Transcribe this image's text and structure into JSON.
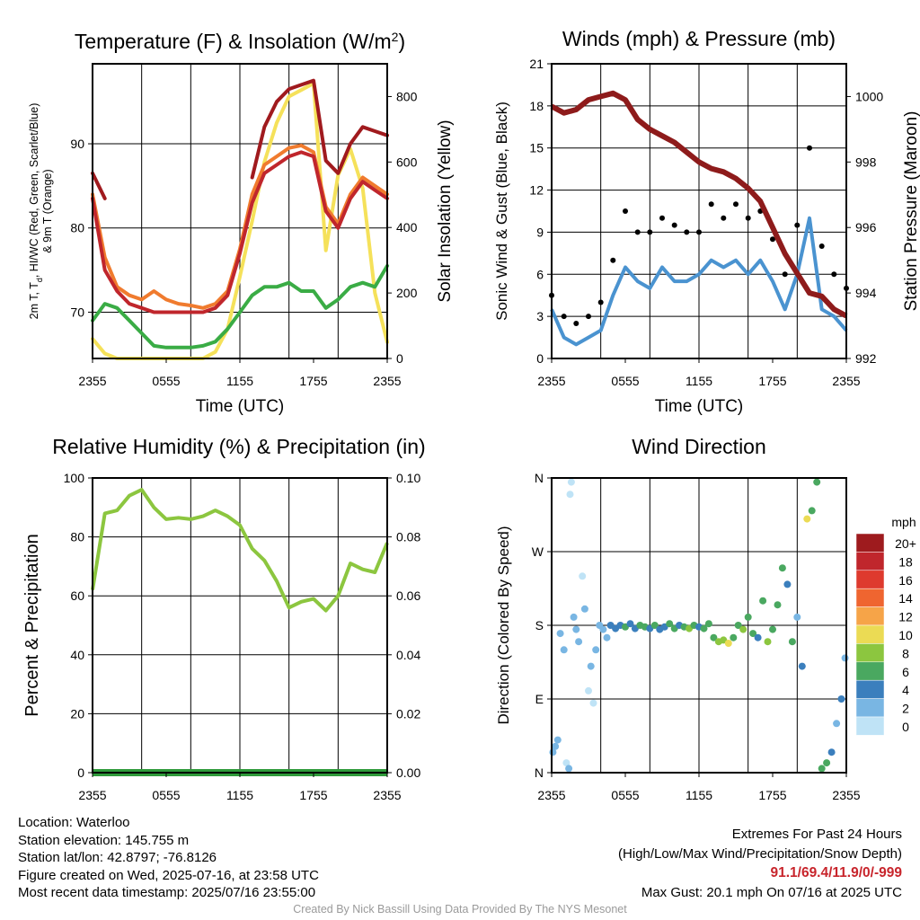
{
  "colors": {
    "temperature": "#c0262c",
    "dewpoint": "#3aac45",
    "heat_index": "#f07b2e",
    "temp_9m": "#a01a1e",
    "insolation": "#f5e15a",
    "wind": "#4a93d0",
    "gust": "#000000",
    "pressure": "#8e1b1b",
    "humidity": "#8cc63f",
    "precipitation": "#2e9a3a"
  },
  "time_ticks": [
    "2355",
    "0555",
    "1155",
    "1755",
    "2355"
  ],
  "charts": {
    "temperature": {
      "title": "Temperature (F) & Insolation (W/m",
      "title_superscript": "2",
      "title_close": ")",
      "ylabel_line1": "2m T, T",
      "ylabel_sub": "d",
      "ylabel_line1_rest": ", HI/WC (Red, Green, Scarlet/Blue)",
      "ylabel_line2": "& 9m T (Orange)",
      "y2label": "Solar Insolation (Yellow)",
      "xlabel": "Time (UTC)",
      "yticks": [
        "70",
        "80",
        "90"
      ],
      "y2ticks": [
        "0",
        "200",
        "400",
        "600",
        "800"
      ]
    },
    "winds": {
      "title": "Winds (mph) & Pressure (mb)",
      "ylabel": "Sonic Wind & Gust (Blue, Black)",
      "y2label": "Station Pressure (Maroon)",
      "xlabel": "Time (UTC)",
      "yticks": [
        "0",
        "3",
        "6",
        "9",
        "12",
        "15",
        "18",
        "21"
      ],
      "y2ticks": [
        "992",
        "994",
        "996",
        "998",
        "1000"
      ]
    },
    "humidity": {
      "title": "Relative Humidity (%) & Precipitation (in)",
      "ylabel": "Percent & Precipitation",
      "yticks": [
        "0",
        "20",
        "40",
        "60",
        "80",
        "100"
      ],
      "y2ticks": [
        "0.00",
        "0.02",
        "0.04",
        "0.06",
        "0.08",
        "0.10"
      ]
    },
    "direction": {
      "title": "Wind Direction",
      "ylabel": "Direction (Colored By Speed)",
      "yticks": [
        "N",
        "E",
        "S",
        "W",
        "N"
      ],
      "legend_title": "mph",
      "legend_labels": [
        "20+",
        "18",
        "16",
        "14",
        "12",
        "10",
        "8",
        "6",
        "4",
        "2",
        "0"
      ],
      "legend_colors": [
        "#9e1b1e",
        "#c0262c",
        "#de3a2e",
        "#ef6530",
        "#f6a448",
        "#ebdb54",
        "#8cc63f",
        "#4aa860",
        "#3b7fbd",
        "#79b6e3",
        "#bfe3f6"
      ]
    }
  },
  "chart_data": [
    {
      "type": "line",
      "title": "Temperature (F) & Insolation (W/m2)",
      "xlabel": "Time (UTC)",
      "ylabel": "2m T, Td, HI/WC (Red, Green, Scarlet/Blue) & 9m T (Orange)",
      "y2label": "Solar Insolation (Yellow)",
      "ylim": [
        64.5,
        99.5
      ],
      "y2lim": [
        0,
        900
      ],
      "x_hours": [
        0,
        1,
        2,
        3,
        4,
        5,
        6,
        7,
        8,
        9,
        10,
        11,
        12,
        13,
        14,
        15,
        16,
        17,
        18,
        19,
        20,
        21,
        22,
        23,
        24
      ],
      "series": [
        {
          "name": "2m T",
          "axis": "left",
          "values": [
            83.5,
            75,
            72.5,
            71,
            70.5,
            70,
            70,
            70,
            70,
            70,
            70.5,
            72,
            77,
            83,
            86.5,
            87.5,
            88.5,
            89,
            88.5,
            82,
            80,
            83.5,
            85.5,
            84.5,
            83.5
          ]
        },
        {
          "name": "Td",
          "axis": "left",
          "values": [
            69,
            71,
            70.5,
            69,
            67.5,
            66,
            65.8,
            65.8,
            65.8,
            66,
            66.5,
            68,
            70,
            72,
            73,
            73,
            73.5,
            72.5,
            72.5,
            70.5,
            71.5,
            73,
            73.5,
            73,
            75.5
          ]
        },
        {
          "name": "Heat Index",
          "axis": "left",
          "values": [
            84,
            76.5,
            73,
            72,
            71.5,
            72.5,
            71.5,
            71,
            70.8,
            70.5,
            71,
            72.5,
            77.5,
            84,
            87.5,
            88.5,
            89.5,
            89.8,
            89,
            82.5,
            80.5,
            84,
            86,
            85,
            84
          ]
        },
        {
          "name": "9m T",
          "axis": "left",
          "values": [
            86.5,
            83.5,
            null,
            null,
            null,
            null,
            null,
            null,
            null,
            null,
            null,
            null,
            null,
            86,
            92,
            95,
            96.5,
            97,
            97.5,
            88,
            86.5,
            90,
            92,
            91.5,
            91
          ]
        },
        {
          "name": "Solar Insolation",
          "axis": "right",
          "values": [
            60,
            15,
            0,
            0,
            0,
            0,
            0,
            0,
            0,
            0,
            20,
            90,
            250,
            420,
            600,
            720,
            800,
            820,
            840,
            330,
            560,
            640,
            520,
            200,
            50
          ]
        }
      ]
    },
    {
      "type": "line",
      "title": "Winds (mph) & Pressure (mb)",
      "xlabel": "Time (UTC)",
      "ylabel": "Sonic Wind & Gust (Blue, Black)",
      "y2label": "Station Pressure (Maroon)",
      "ylim": [
        0,
        21
      ],
      "y2lim": [
        992,
        1001
      ],
      "x_hours": [
        0,
        1,
        2,
        3,
        4,
        5,
        6,
        7,
        8,
        9,
        10,
        11,
        12,
        13,
        14,
        15,
        16,
        17,
        18,
        19,
        20,
        21,
        22,
        23,
        24
      ],
      "series": [
        {
          "name": "Sonic Wind",
          "axis": "left",
          "values": [
            3.5,
            1.5,
            1,
            1.5,
            2,
            4.5,
            6.5,
            5.5,
            5,
            6.5,
            5.5,
            5.5,
            6,
            7,
            6.5,
            7,
            6,
            7,
            5.5,
            3.5,
            6,
            10,
            3.5,
            3,
            2
          ]
        },
        {
          "name": "Gust",
          "axis": "left",
          "values": [
            4.5,
            3,
            2.5,
            3,
            4,
            7,
            10.5,
            9,
            9,
            10,
            9.5,
            9,
            9,
            11,
            10,
            11,
            10,
            10.5,
            8.5,
            6,
            9.5,
            15,
            8,
            6,
            5
          ]
        },
        {
          "name": "Station Pressure",
          "axis": "right",
          "values": [
            999.7,
            999.5,
            999.6,
            999.9,
            1000.0,
            1000.1,
            999.9,
            999.3,
            999.0,
            998.8,
            998.6,
            998.3,
            998.0,
            997.8,
            997.7,
            997.5,
            997.2,
            996.8,
            996.0,
            995.2,
            994.6,
            994.0,
            993.9,
            993.5,
            993.3
          ]
        }
      ]
    },
    {
      "type": "line",
      "title": "Relative Humidity (%) & Precipitation (in)",
      "ylabel": "Percent & Precipitation",
      "ylim": [
        0,
        100
      ],
      "y2lim": [
        0,
        0.1
      ],
      "x_hours": [
        0,
        1,
        2,
        3,
        4,
        5,
        6,
        7,
        8,
        9,
        10,
        11,
        12,
        13,
        14,
        15,
        16,
        17,
        18,
        19,
        20,
        21,
        22,
        23,
        24
      ],
      "series": [
        {
          "name": "Relative Humidity",
          "axis": "left",
          "values": [
            62,
            88,
            89,
            94,
            96,
            90,
            86,
            86.5,
            86,
            87,
            89,
            87,
            84,
            76,
            72,
            65,
            56,
            58,
            59,
            55,
            60,
            71,
            69,
            68,
            78
          ]
        },
        {
          "name": "Precipitation",
          "axis": "right",
          "values": [
            0,
            0,
            0,
            0,
            0,
            0,
            0,
            0,
            0,
            0,
            0,
            0,
            0,
            0,
            0,
            0,
            0,
            0,
            0,
            0,
            0,
            0,
            0,
            0,
            0
          ]
        }
      ]
    },
    {
      "type": "scatter",
      "title": "Wind Direction",
      "ylabel": "Direction (Colored By Speed)",
      "ylim": [
        0,
        360
      ],
      "legend_title": "mph",
      "points": [
        {
          "h": 0.1,
          "d": 25,
          "s": 3
        },
        {
          "h": 0.3,
          "d": 32,
          "s": 3
        },
        {
          "h": 0.5,
          "d": 40,
          "s": 2
        },
        {
          "h": 0.7,
          "d": 170,
          "s": 3
        },
        {
          "h": 1.0,
          "d": 150,
          "s": 2
        },
        {
          "h": 1.2,
          "d": 12,
          "s": 1
        },
        {
          "h": 1.4,
          "d": 5,
          "s": 3
        },
        {
          "h": 1.5,
          "d": 340,
          "s": 1
        },
        {
          "h": 1.6,
          "d": 355,
          "s": 1
        },
        {
          "h": 1.8,
          "d": 190,
          "s": 2
        },
        {
          "h": 2.0,
          "d": 175,
          "s": 3
        },
        {
          "h": 2.2,
          "d": 160,
          "s": 2
        },
        {
          "h": 2.5,
          "d": 240,
          "s": 1
        },
        {
          "h": 2.7,
          "d": 200,
          "s": 2
        },
        {
          "h": 3.0,
          "d": 100,
          "s": 1
        },
        {
          "h": 3.2,
          "d": 130,
          "s": 2
        },
        {
          "h": 3.4,
          "d": 85,
          "s": 1
        },
        {
          "h": 3.6,
          "d": 150,
          "s": 2
        },
        {
          "h": 3.9,
          "d": 180,
          "s": 2
        },
        {
          "h": 4.2,
          "d": 175,
          "s": 3
        },
        {
          "h": 4.5,
          "d": 165,
          "s": 3
        },
        {
          "h": 4.8,
          "d": 180,
          "s": 5
        },
        {
          "h": 5.2,
          "d": 176,
          "s": 4
        },
        {
          "h": 5.6,
          "d": 180,
          "s": 5
        },
        {
          "h": 6.0,
          "d": 178,
          "s": 6
        },
        {
          "h": 6.4,
          "d": 182,
          "s": 5
        },
        {
          "h": 6.8,
          "d": 176,
          "s": 4
        },
        {
          "h": 7.2,
          "d": 180,
          "s": 6
        },
        {
          "h": 7.6,
          "d": 178,
          "s": 7
        },
        {
          "h": 8.0,
          "d": 176,
          "s": 5
        },
        {
          "h": 8.4,
          "d": 180,
          "s": 6
        },
        {
          "h": 8.8,
          "d": 175,
          "s": 4
        },
        {
          "h": 9.2,
          "d": 178,
          "s": 5
        },
        {
          "h": 9.6,
          "d": 182,
          "s": 6
        },
        {
          "h": 10.0,
          "d": 176,
          "s": 7
        },
        {
          "h": 10.4,
          "d": 180,
          "s": 5
        },
        {
          "h": 10.8,
          "d": 178,
          "s": 6
        },
        {
          "h": 11.2,
          "d": 176,
          "s": 8
        },
        {
          "h": 11.6,
          "d": 180,
          "s": 6
        },
        {
          "h": 12.0,
          "d": 178,
          "s": 5
        },
        {
          "h": 12.4,
          "d": 176,
          "s": 7
        },
        {
          "h": 12.8,
          "d": 182,
          "s": 6
        },
        {
          "h": 13.2,
          "d": 165,
          "s": 7
        },
        {
          "h": 13.6,
          "d": 160,
          "s": 9
        },
        {
          "h": 14.0,
          "d": 162,
          "s": 8
        },
        {
          "h": 14.4,
          "d": 158,
          "s": 10
        },
        {
          "h": 14.8,
          "d": 165,
          "s": 7
        },
        {
          "h": 15.2,
          "d": 180,
          "s": 6
        },
        {
          "h": 15.6,
          "d": 175,
          "s": 8
        },
        {
          "h": 16.0,
          "d": 190,
          "s": 7
        },
        {
          "h": 16.4,
          "d": 170,
          "s": 6
        },
        {
          "h": 16.8,
          "d": 165,
          "s": 5
        },
        {
          "h": 17.2,
          "d": 210,
          "s": 7
        },
        {
          "h": 17.6,
          "d": 160,
          "s": 8
        },
        {
          "h": 18.0,
          "d": 175,
          "s": 6
        },
        {
          "h": 18.4,
          "d": 205,
          "s": 7
        },
        {
          "h": 18.8,
          "d": 250,
          "s": 6
        },
        {
          "h": 19.2,
          "d": 230,
          "s": 5
        },
        {
          "h": 19.6,
          "d": 160,
          "s": 7
        },
        {
          "h": 20.0,
          "d": 190,
          "s": 3
        },
        {
          "h": 20.4,
          "d": 130,
          "s": 4
        },
        {
          "h": 20.8,
          "d": 310,
          "s": 10
        },
        {
          "h": 21.2,
          "d": 320,
          "s": 7
        },
        {
          "h": 21.6,
          "d": 355,
          "s": 6
        },
        {
          "h": 22.0,
          "d": 5,
          "s": 7
        },
        {
          "h": 22.4,
          "d": 12,
          "s": 6
        },
        {
          "h": 22.8,
          "d": 25,
          "s": 4
        },
        {
          "h": 23.2,
          "d": 60,
          "s": 3
        },
        {
          "h": 23.6,
          "d": 90,
          "s": 4
        },
        {
          "h": 23.9,
          "d": 140,
          "s": 3
        }
      ]
    }
  ],
  "footer": {
    "location": "Location: Waterloo",
    "elevation": "Station elevation: 145.755 m",
    "latlon": "Station lat/lon: 42.8797; -76.8126",
    "created": "Figure created on Wed, 2025-07-16, at 23:58 UTC",
    "recent": "Most recent data timestamp: 2025/07/16 23:55:00",
    "extremes_title": "Extremes For Past 24 Hours",
    "extremes_subtitle": "(High/Low/Max Wind/Precipitation/Snow Depth)",
    "extremes_values": "91.1/69.4/11.9/0/-999",
    "max_gust": "Max Gust: 20.1 mph On 07/16 at 2025 UTC",
    "credit": "Created By Nick Bassill Using Data Provided By The NYS Mesonet"
  }
}
